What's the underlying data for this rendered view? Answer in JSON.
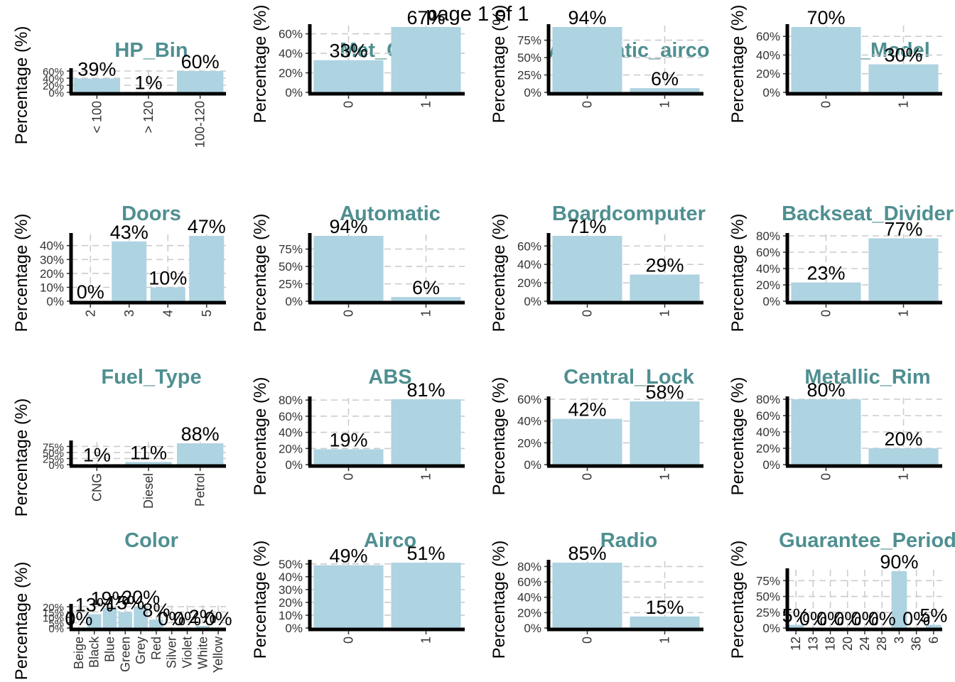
{
  "page_title": "page 1 of 1",
  "colors": {
    "bar": "#aed3e1",
    "title": "#4f8f91",
    "grid": "#cccccc",
    "axis": "#000000"
  },
  "chart_data": [
    {
      "type": "bar",
      "title": "HP_Bin",
      "ylabel": "Percentage (%)",
      "categories": [
        "< 100",
        "> 120",
        "100-120"
      ],
      "values": [
        39,
        1,
        60
      ],
      "labels": [
        "39%",
        "1%",
        "60%"
      ],
      "yticks": [
        0,
        20,
        40,
        60
      ],
      "ylim": [
        0,
        60
      ]
    },
    {
      "type": "bar",
      "title": "Met_Color",
      "ylabel": "Percentage (%)",
      "categories": [
        "0",
        "1"
      ],
      "values": [
        33,
        67
      ],
      "labels": [
        "33%",
        "67%"
      ],
      "yticks": [
        0,
        20,
        40,
        60
      ],
      "ylim": [
        0,
        67
      ]
    },
    {
      "type": "bar",
      "title": "Automatic_airco",
      "ylabel": "Percentage (%)",
      "categories": [
        "0",
        "1"
      ],
      "values": [
        94,
        6
      ],
      "labels": [
        "94%",
        "6%"
      ],
      "yticks": [
        0,
        25,
        50,
        75
      ],
      "ylim": [
        0,
        94
      ]
    },
    {
      "type": "bar",
      "title": "Sport_Model",
      "ylabel": "Percentage (%)",
      "categories": [
        "0",
        "1"
      ],
      "values": [
        70,
        30
      ],
      "labels": [
        "70%",
        "30%"
      ],
      "yticks": [
        0,
        20,
        40,
        60
      ],
      "ylim": [
        0,
        70
      ]
    },
    {
      "type": "bar",
      "title": "Doors",
      "ylabel": "Percentage (%)",
      "categories": [
        "2",
        "3",
        "4",
        "5"
      ],
      "values": [
        0,
        43,
        10,
        47
      ],
      "labels": [
        "0%",
        "43%",
        "10%",
        "47%"
      ],
      "yticks": [
        0,
        10,
        20,
        30,
        40
      ],
      "ylim": [
        0,
        47
      ]
    },
    {
      "type": "bar",
      "title": "Automatic",
      "ylabel": "Percentage (%)",
      "categories": [
        "0",
        "1"
      ],
      "values": [
        94,
        6
      ],
      "labels": [
        "94%",
        "6%"
      ],
      "yticks": [
        0,
        25,
        50,
        75
      ],
      "ylim": [
        0,
        94
      ]
    },
    {
      "type": "bar",
      "title": "Boardcomputer",
      "ylabel": "Percentage (%)",
      "categories": [
        "0",
        "1"
      ],
      "values": [
        71,
        29
      ],
      "labels": [
        "71%",
        "29%"
      ],
      "yticks": [
        0,
        20,
        40,
        60
      ],
      "ylim": [
        0,
        71
      ]
    },
    {
      "type": "bar",
      "title": "Backseat_Divider",
      "ylabel": "Percentage (%)",
      "categories": [
        "0",
        "1"
      ],
      "values": [
        23,
        77
      ],
      "labels": [
        "23%",
        "77%"
      ],
      "yticks": [
        0,
        20,
        40,
        60,
        80
      ],
      "ylim": [
        0,
        80
      ]
    },
    {
      "type": "bar",
      "title": "Fuel_Type",
      "ylabel": "Percentage (%)",
      "categories": [
        "CNG",
        "Diesel",
        "Petrol"
      ],
      "values": [
        1,
        11,
        88
      ],
      "labels": [
        "1%",
        "11%",
        "88%"
      ],
      "yticks": [
        0,
        25,
        50,
        75
      ],
      "ylim": [
        0,
        88
      ]
    },
    {
      "type": "bar",
      "title": "ABS",
      "ylabel": "Percentage (%)",
      "categories": [
        "0",
        "1"
      ],
      "values": [
        19,
        81
      ],
      "labels": [
        "19%",
        "81%"
      ],
      "yticks": [
        0,
        20,
        40,
        60,
        80
      ],
      "ylim": [
        0,
        81
      ]
    },
    {
      "type": "bar",
      "title": "Central_Lock",
      "ylabel": "Percentage (%)",
      "categories": [
        "0",
        "1"
      ],
      "values": [
        42,
        58
      ],
      "labels": [
        "42%",
        "58%"
      ],
      "yticks": [
        0,
        20,
        40,
        60
      ],
      "ylim": [
        0,
        60
      ]
    },
    {
      "type": "bar",
      "title": "Metallic_Rim",
      "ylabel": "Percentage (%)",
      "categories": [
        "0",
        "1"
      ],
      "values": [
        80,
        20
      ],
      "labels": [
        "80%",
        "20%"
      ],
      "yticks": [
        0,
        20,
        40,
        60,
        80
      ],
      "ylim": [
        0,
        80
      ]
    },
    {
      "type": "bar",
      "title": "Color",
      "ylabel": "Percentage (%)",
      "categories": [
        "Beige",
        "Black",
        "Blue",
        "Green",
        "Grey",
        "Red",
        "Silver",
        "Violet",
        "White",
        "Yellow"
      ],
      "values": [
        0,
        13,
        19,
        15,
        20,
        8,
        0,
        0,
        2,
        0
      ],
      "labels": [
        "0%",
        "13%",
        "19%",
        "15%",
        "20%",
        "8%",
        "0%",
        "0%",
        "2%",
        "0%"
      ],
      "yticks": [
        0,
        5,
        10,
        15,
        20
      ],
      "ylim": [
        0,
        20
      ]
    },
    {
      "type": "bar",
      "title": "Airco",
      "ylabel": "Percentage (%)",
      "categories": [
        "0",
        "1"
      ],
      "values": [
        49,
        51
      ],
      "labels": [
        "49%",
        "51%"
      ],
      "yticks": [
        0,
        10,
        20,
        30,
        40,
        50
      ],
      "ylim": [
        0,
        51
      ]
    },
    {
      "type": "bar",
      "title": "Radio",
      "ylabel": "Percentage (%)",
      "categories": [
        "0",
        "1"
      ],
      "values": [
        85,
        15
      ],
      "labels": [
        "85%",
        "15%"
      ],
      "yticks": [
        0,
        20,
        40,
        60,
        80
      ],
      "ylim": [
        0,
        85
      ]
    },
    {
      "type": "bar",
      "title": "Guarantee_Period",
      "ylabel": "Percentage (%)",
      "categories": [
        "12",
        "13",
        "18",
        "20",
        "24",
        "28",
        "3",
        "36",
        "6"
      ],
      "values": [
        5,
        0,
        0,
        0,
        0,
        0,
        90,
        0,
        5
      ],
      "labels": [
        "5%",
        "0%",
        "0%",
        "0%",
        "0%",
        "0%",
        "90%",
        "0%",
        "5%"
      ],
      "yticks": [
        0,
        25,
        50,
        75
      ],
      "ylim": [
        0,
        90
      ]
    }
  ]
}
